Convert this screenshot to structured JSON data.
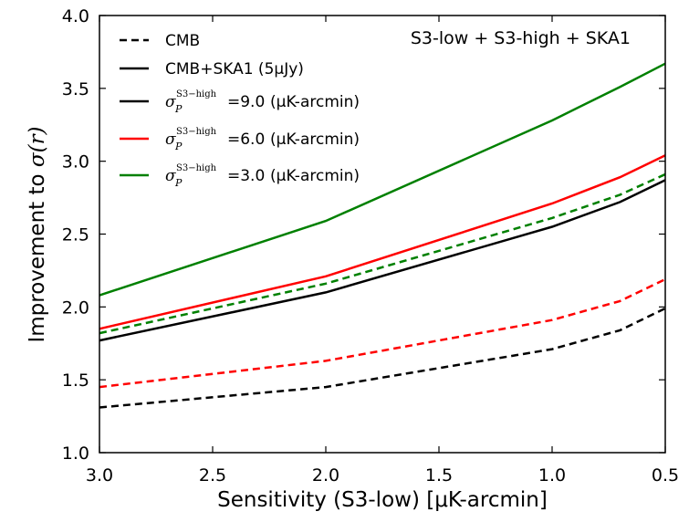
{
  "chart_data": {
    "type": "line",
    "title": "",
    "annotation": "S3-low + S3-high + SKA1",
    "xlabel": "Sensitivity (S3-low) [μK-arcmin]",
    "ylabel_text": "Improvement to ",
    "ylabel_math": "σ(r)",
    "xlim": [
      3.0,
      0.5
    ],
    "ylim": [
      1.0,
      4.0
    ],
    "x_ticks": [
      3.0,
      2.5,
      2.0,
      1.5,
      1.0,
      0.5
    ],
    "x_tick_labels": [
      "3.0",
      "2.5",
      "2.0",
      "1.5",
      "1.0",
      "0.5"
    ],
    "y_ticks": [
      1.0,
      1.5,
      2.0,
      2.5,
      3.0,
      3.5,
      4.0
    ],
    "y_tick_labels": [
      "1.0",
      "1.5",
      "2.0",
      "2.5",
      "3.0",
      "3.5",
      "4.0"
    ],
    "x": [
      3.0,
      2.0,
      1.0,
      0.7,
      0.5
    ],
    "series": [
      {
        "name": "CMB, σP=9.0",
        "color": "#000000",
        "style": "dashed",
        "values": [
          1.31,
          1.45,
          1.71,
          1.84,
          1.99
        ]
      },
      {
        "name": "CMB, σP=6.0",
        "color": "#ff0000",
        "style": "dashed",
        "values": [
          1.45,
          1.63,
          1.91,
          2.04,
          2.19
        ]
      },
      {
        "name": "CMB, σP=3.0",
        "color": "#008000",
        "style": "dashed",
        "values": [
          1.82,
          2.16,
          2.61,
          2.77,
          2.91
        ]
      },
      {
        "name": "CMB+SKA1, σP=9.0",
        "color": "#000000",
        "style": "solid",
        "values": [
          1.77,
          2.1,
          2.55,
          2.72,
          2.87
        ]
      },
      {
        "name": "CMB+SKA1, σP=6.0",
        "color": "#ff0000",
        "style": "solid",
        "values": [
          1.85,
          2.21,
          2.71,
          2.89,
          3.04
        ]
      },
      {
        "name": "CMB+SKA1, σP=3.0",
        "color": "#008000",
        "style": "solid",
        "values": [
          2.08,
          2.59,
          3.28,
          3.51,
          3.67
        ]
      }
    ],
    "legend": {
      "position": "top-left",
      "entries": [
        {
          "style": "dashed",
          "color": "#000000",
          "label": "CMB"
        },
        {
          "style": "solid",
          "color": "#000000",
          "label": "CMB+SKA1 (5μJy)"
        },
        {
          "style": "solid",
          "color": "#000000",
          "sigma": "σ",
          "sub": "P",
          "sup": "S3−high",
          "value": "=9.0",
          "units": " (μK-arcmin)"
        },
        {
          "style": "solid",
          "color": "#ff0000",
          "sigma": "σ",
          "sub": "P",
          "sup": "S3−high",
          "value": "=6.0",
          "units": " (μK-arcmin)"
        },
        {
          "style": "solid",
          "color": "#008000",
          "sigma": "σ",
          "sub": "P",
          "sup": "S3−high",
          "value": "=3.0",
          "units": " (μK-arcmin)"
        }
      ]
    }
  }
}
